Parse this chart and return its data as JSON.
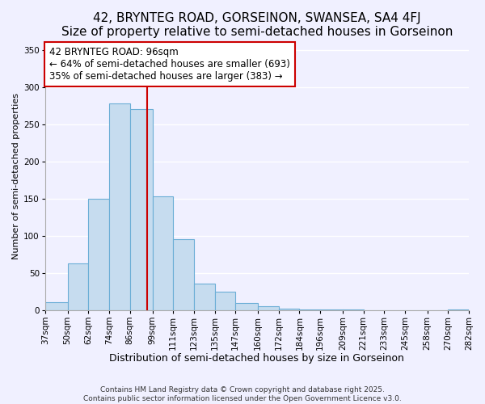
{
  "title": "42, BRYNTEG ROAD, GORSEINON, SWANSEA, SA4 4FJ",
  "subtitle": "Size of property relative to semi-detached houses in Gorseinon",
  "xlabel": "Distribution of semi-detached houses by size in Gorseinon",
  "ylabel": "Number of semi-detached properties",
  "bin_edges": [
    37,
    50,
    62,
    74,
    86,
    99,
    111,
    123,
    135,
    147,
    160,
    172,
    184,
    196,
    209,
    221,
    233,
    245,
    258,
    270,
    282
  ],
  "bin_labels": [
    "37sqm",
    "50sqm",
    "62sqm",
    "74sqm",
    "86sqm",
    "99sqm",
    "111sqm",
    "123sqm",
    "135sqm",
    "147sqm",
    "160sqm",
    "172sqm",
    "184sqm",
    "196sqm",
    "209sqm",
    "221sqm",
    "233sqm",
    "245sqm",
    "258sqm",
    "270sqm",
    "282sqm"
  ],
  "counts": [
    11,
    63,
    150,
    278,
    270,
    153,
    95,
    36,
    25,
    10,
    5,
    2,
    1,
    1,
    1,
    0,
    0,
    0,
    0,
    1
  ],
  "bar_color": "#c6dcef",
  "bar_edge_color": "#6baed6",
  "property_line_x": 96,
  "property_line_color": "#cc0000",
  "annotation_title": "42 BRYNTEG ROAD: 96sqm",
  "annotation_line1": "← 64% of semi-detached houses are smaller (693)",
  "annotation_line2": "35% of semi-detached houses are larger (383) →",
  "annotation_box_color": "#ffffff",
  "annotation_box_edge": "#cc0000",
  "ylim": [
    0,
    360
  ],
  "yticks": [
    0,
    50,
    100,
    150,
    200,
    250,
    300,
    350
  ],
  "footer_line1": "Contains HM Land Registry data © Crown copyright and database right 2025.",
  "footer_line2": "Contains public sector information licensed under the Open Government Licence v3.0.",
  "title_fontsize": 11,
  "subtitle_fontsize": 10,
  "xlabel_fontsize": 9,
  "ylabel_fontsize": 8,
  "tick_fontsize": 7.5,
  "annotation_fontsize": 8.5,
  "footer_fontsize": 6.5,
  "background_color": "#f0f0ff"
}
